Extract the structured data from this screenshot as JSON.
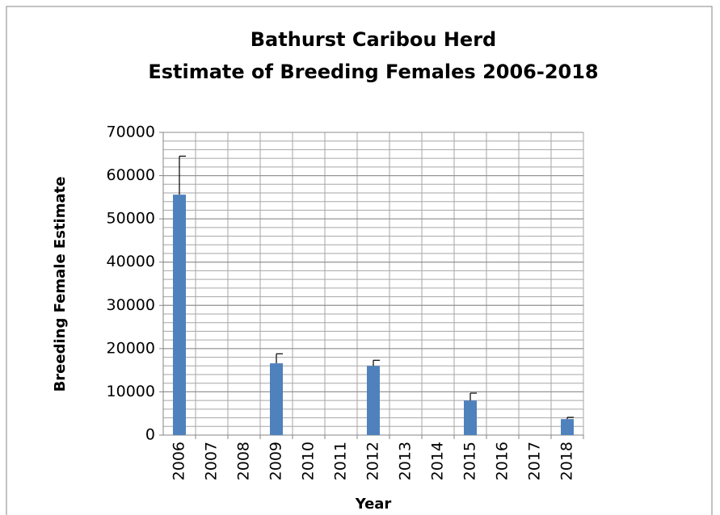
{
  "chart_data": {
    "type": "bar",
    "title": "Bathurst Caribou Herd",
    "subtitle": "Estimate of Breeding Females 2006-2018",
    "xlabel": "Year",
    "ylabel": "Breeding Female Estimate",
    "categories": [
      "2006",
      "2007",
      "2008",
      "2009",
      "2010",
      "2011",
      "2012",
      "2013",
      "2014",
      "2015",
      "2016",
      "2017",
      "2018"
    ],
    "values": [
      55600,
      null,
      null,
      16600,
      null,
      null,
      16000,
      null,
      null,
      8000,
      null,
      null,
      3700
    ],
    "errors": [
      8900,
      null,
      null,
      2200,
      null,
      null,
      1300,
      null,
      null,
      1700,
      null,
      null,
      400
    ],
    "color": "#4f81bd",
    "ylim": [
      0,
      70000
    ],
    "yticks": [
      0,
      10000,
      20000,
      30000,
      40000,
      50000,
      60000,
      70000
    ],
    "grid": true,
    "minor_grid_step": 2000
  }
}
